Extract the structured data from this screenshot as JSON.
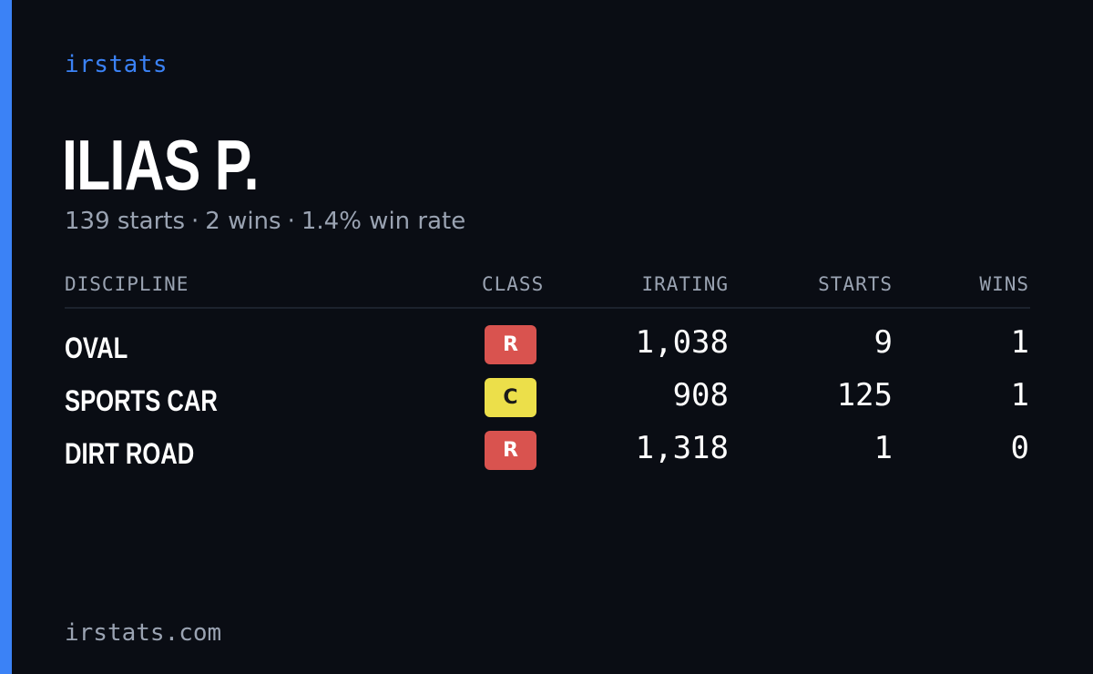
{
  "brand": "irstats",
  "player": {
    "name": "ILIAS P.",
    "starts_text": "139 starts",
    "wins_text": "2 wins",
    "win_rate_text": "1.4% win rate",
    "separator": "·"
  },
  "table": {
    "headers": {
      "discipline": "DISCIPLINE",
      "class": "CLASS",
      "irating": "IRATING",
      "starts": "STARTS",
      "wins": "WINS"
    },
    "rows": [
      {
        "discipline": "OVAL",
        "class": "R",
        "class_color": "#d9534f",
        "irating": "1,038",
        "starts": "9",
        "wins": "1"
      },
      {
        "discipline": "SPORTS CAR",
        "class": "C",
        "class_color": "#ecdf4a",
        "irating": "908",
        "starts": "125",
        "wins": "1"
      },
      {
        "discipline": "DIRT ROAD",
        "class": "R",
        "class_color": "#d9534f",
        "irating": "1,318",
        "starts": "1",
        "wins": "0"
      }
    ]
  },
  "footer": "irstats.com",
  "colors": {
    "accent": "#3b82f6",
    "background": "#0a0d14",
    "muted_text": "#9aa3b2"
  }
}
